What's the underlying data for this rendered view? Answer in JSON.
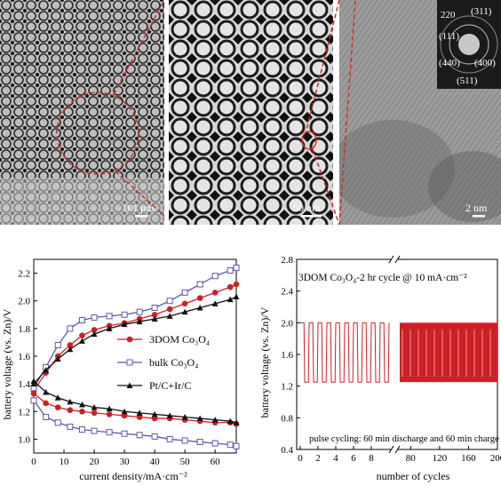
{
  "tem_panels": {
    "panel1_scale": "0.1 μm",
    "panel2_scale": "50 nm",
    "panel3_scale": "2 nm",
    "saed_labels": [
      "220",
      "(311)",
      "(111)",
      "(400)",
      "(440)",
      "(511)"
    ]
  },
  "chart_data": [
    {
      "type": "line",
      "xlabel": "current density/mA·cm⁻²",
      "ylabel": "battery voltage (vs. Zn)/V",
      "xlim": [
        0,
        67
      ],
      "ylim": [
        0.9,
        2.3
      ],
      "xticks": [
        0,
        10,
        20,
        30,
        40,
        50,
        60
      ],
      "yticks": [
        1.0,
        1.2,
        1.4,
        1.6,
        1.8,
        2.0,
        2.2
      ],
      "legend_position": "center",
      "series": [
        {
          "name": "3DOM Co₃O₄",
          "color": "#cc2027",
          "marker": "circle-filled",
          "charge": {
            "x": [
              0,
              4,
              8,
              12,
              16,
              20,
              25,
              30,
              35,
              40,
              45,
              50,
              55,
              60,
              65,
              67
            ],
            "y": [
              1.35,
              1.48,
              1.6,
              1.68,
              1.75,
              1.79,
              1.82,
              1.84,
              1.87,
              1.9,
              1.94,
              1.98,
              2.02,
              2.06,
              2.1,
              2.12
            ]
          },
          "discharge": {
            "x": [
              0,
              4,
              8,
              12,
              16,
              20,
              25,
              30,
              35,
              40,
              45,
              50,
              55,
              60,
              65,
              67
            ],
            "y": [
              1.33,
              1.26,
              1.23,
              1.21,
              1.2,
              1.19,
              1.18,
              1.17,
              1.16,
              1.15,
              1.15,
              1.14,
              1.13,
              1.12,
              1.12,
              1.11
            ]
          }
        },
        {
          "name": "bulk Co₃O₄",
          "color": "#5a5aa8",
          "marker": "square-open",
          "charge": {
            "x": [
              0,
              4,
              8,
              12,
              16,
              20,
              25,
              30,
              35,
              40,
              45,
              50,
              55,
              60,
              65,
              67
            ],
            "y": [
              1.37,
              1.52,
              1.68,
              1.8,
              1.86,
              1.88,
              1.89,
              1.9,
              1.92,
              1.95,
              2.0,
              2.06,
              2.12,
              2.18,
              2.22,
              2.24
            ]
          },
          "discharge": {
            "x": [
              0,
              4,
              8,
              12,
              16,
              20,
              25,
              30,
              35,
              40,
              45,
              50,
              55,
              60,
              65,
              67
            ],
            "y": [
              1.28,
              1.16,
              1.12,
              1.09,
              1.07,
              1.06,
              1.05,
              1.04,
              1.03,
              1.02,
              1.0,
              0.99,
              0.98,
              0.97,
              0.96,
              0.95
            ]
          }
        },
        {
          "name": "Pt/C+Ir/C",
          "color": "#111111",
          "marker": "triangle-filled",
          "charge": {
            "x": [
              0,
              4,
              8,
              12,
              16,
              20,
              25,
              30,
              35,
              40,
              45,
              50,
              55,
              60,
              65,
              67
            ],
            "y": [
              1.4,
              1.5,
              1.58,
              1.65,
              1.71,
              1.76,
              1.8,
              1.83,
              1.85,
              1.87,
              1.89,
              1.92,
              1.95,
              1.98,
              2.01,
              2.03
            ]
          },
          "discharge": {
            "x": [
              0,
              4,
              8,
              12,
              16,
              20,
              25,
              30,
              35,
              40,
              45,
              50,
              55,
              60,
              65,
              67
            ],
            "y": [
              1.42,
              1.34,
              1.3,
              1.27,
              1.25,
              1.23,
              1.22,
              1.2,
              1.19,
              1.18,
              1.17,
              1.16,
              1.15,
              1.14,
              1.13,
              1.12
            ]
          }
        }
      ]
    },
    {
      "type": "line",
      "title": "3DOM Co₃O₄-2 hr cycle @ 10 mA·cm⁻²",
      "annotation": "pulse cycling: 60 min discharge and 60 min charge",
      "xlabel": "number of cycles",
      "ylabel": "battery voltage (vs. Zn)/V",
      "ylim": [
        0.4,
        2.8
      ],
      "yticks": [
        0.4,
        0.8,
        1.2,
        1.6,
        2.0,
        2.4,
        2.8
      ],
      "x_segment1": {
        "xlim": [
          0,
          10
        ],
        "xticks": [
          0,
          2,
          4,
          6,
          8
        ],
        "cycles": 10
      },
      "x_segment2": {
        "xlim": [
          65,
          200
        ],
        "xticks": [
          80,
          120,
          160,
          200
        ]
      },
      "axis_break": true,
      "color": "#cc2027",
      "charge_voltage": 2.0,
      "discharge_voltage": 1.25
    }
  ]
}
